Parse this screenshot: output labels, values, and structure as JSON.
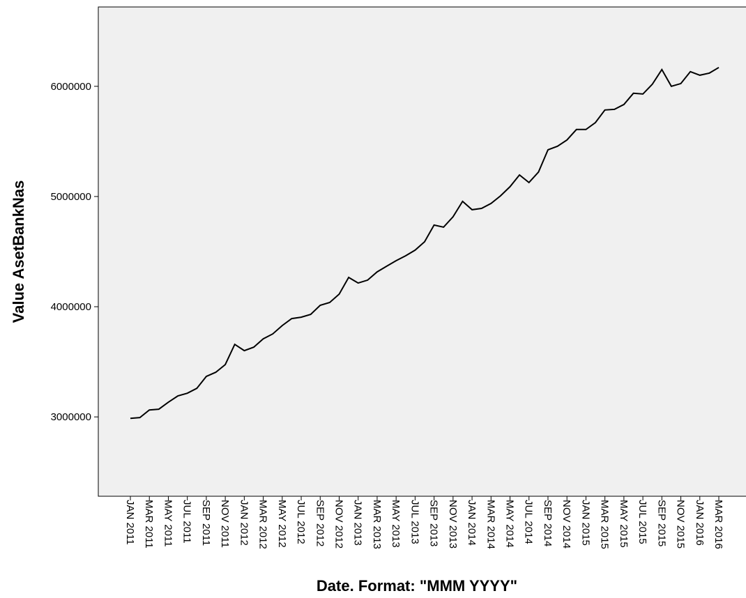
{
  "chart_data": {
    "type": "line",
    "x_label": "Date.  Format:  \"MMM YYYY\"",
    "y_label": "Value AsetBankNas",
    "categories": [
      "JAN 2011",
      null,
      "MAR 2011",
      null,
      "MAY 2011",
      null,
      "JUL 2011",
      null,
      "SEP 2011",
      null,
      "NOV 2011",
      null,
      "JAN 2012",
      null,
      "MAR 2012",
      null,
      "MAY 2012",
      null,
      "JUL 2012",
      null,
      "SEP 2012",
      null,
      "NOV 2012",
      null,
      "JAN 2013",
      null,
      "MAR 2013",
      null,
      "MAY 2013",
      null,
      "JUL 2013",
      null,
      "SEP 2013",
      null,
      "NOV 2013",
      null,
      "JAN 2014",
      null,
      "MAR 2014",
      null,
      "MAY 2014",
      null,
      "JUL 2014",
      null,
      "SEP 2014",
      null,
      "NOV 2014",
      null,
      "JAN 2015",
      null,
      "MAR 2015",
      null,
      "MAY 2015",
      null,
      "JUL 2015",
      null,
      "SEP 2015",
      null,
      "NOV 2015",
      null,
      "JAN 2016",
      null,
      "MAR 2016"
    ],
    "values": [
      2987000,
      2994000,
      3063000,
      3070000,
      3133000,
      3190000,
      3215000,
      3259000,
      3367000,
      3405000,
      3475000,
      3658000,
      3601000,
      3633000,
      3709000,
      3753000,
      3829000,
      3892000,
      3905000,
      3930000,
      4013000,
      4038000,
      4114000,
      4266000,
      4215000,
      4241000,
      4316000,
      4367000,
      4418000,
      4462000,
      4513000,
      4589000,
      4741000,
      4722000,
      4816000,
      4956000,
      4880000,
      4892000,
      4937000,
      5006000,
      5089000,
      5196000,
      5127000,
      5222000,
      5424000,
      5456000,
      5513000,
      5608000,
      5608000,
      5671000,
      5785000,
      5791000,
      5835000,
      5937000,
      5930000,
      6019000,
      6152000,
      6000000,
      6025000,
      6133000,
      6101000,
      6120000,
      6171000
    ],
    "color": "#000000",
    "ylim": [
      2280000,
      6720000
    ],
    "yticks": [
      3000000,
      4000000,
      5000000,
      6000000
    ]
  }
}
